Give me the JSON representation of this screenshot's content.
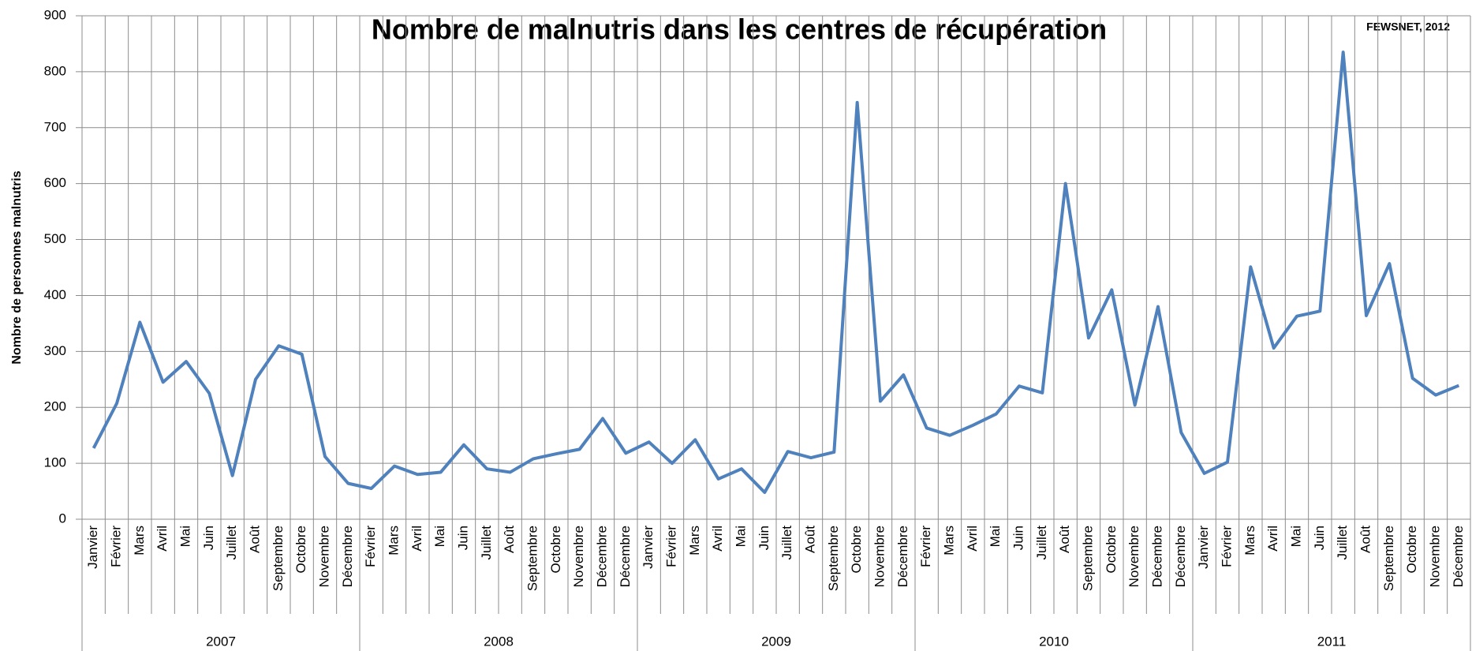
{
  "chart_data": {
    "type": "line",
    "title": "Nombre de malnutris dans les centres de récupération",
    "source": "FEWSNET, 2012",
    "y_label": "Nombre de personnes malnutris",
    "categories": [
      "Janvier",
      "Février",
      "Mars",
      "Avril",
      "Mai",
      "Juin",
      "Juillet",
      "Août",
      "Septembre",
      "Octobre",
      "Novembre",
      "Décembre",
      "Février",
      "Mars",
      "Avril",
      "Mai",
      "Juin",
      "Juillet",
      "Août",
      "Septembre",
      "Octobre",
      "Novembre",
      "Décembre",
      "Décembre",
      "Janvier",
      "Février",
      "Mars",
      "Avril",
      "Mai",
      "Juin",
      "Juillet",
      "Août",
      "Septembre",
      "Octobre",
      "Novembre",
      "Décembre",
      "Février",
      "Mars",
      "Avril",
      "Mai",
      "Juin",
      "Juillet",
      "Août",
      "Septembre",
      "Octobre",
      "Novembre",
      "Décembre",
      "Décembre",
      "Janvier",
      "Février",
      "Mars",
      "Avril",
      "Mai",
      "Juin",
      "Juillet",
      "Août",
      "Septembre",
      "Octobre",
      "Novembre",
      "Décembre"
    ],
    "groups": [
      "2007",
      "2008",
      "2009",
      "2010",
      "2011"
    ],
    "values": [
      127,
      207,
      352,
      245,
      282,
      225,
      78,
      250,
      310,
      295,
      112,
      64,
      55,
      95,
      80,
      84,
      133,
      90,
      84,
      108,
      117,
      125,
      180,
      118,
      138,
      100,
      142,
      72,
      90,
      48,
      121,
      110,
      120,
      745,
      211,
      258,
      163,
      150,
      168,
      188,
      238,
      226,
      600,
      324,
      410,
      204,
      380,
      155,
      82,
      102,
      451,
      306,
      363,
      372,
      835,
      364,
      457,
      252,
      222,
      239
    ],
    "color": "#4f81bd",
    "ylim": [
      0,
      900
    ],
    "yticks": [
      0,
      100,
      200,
      300,
      400,
      500,
      600,
      700,
      800,
      900
    ],
    "grid": true
  }
}
